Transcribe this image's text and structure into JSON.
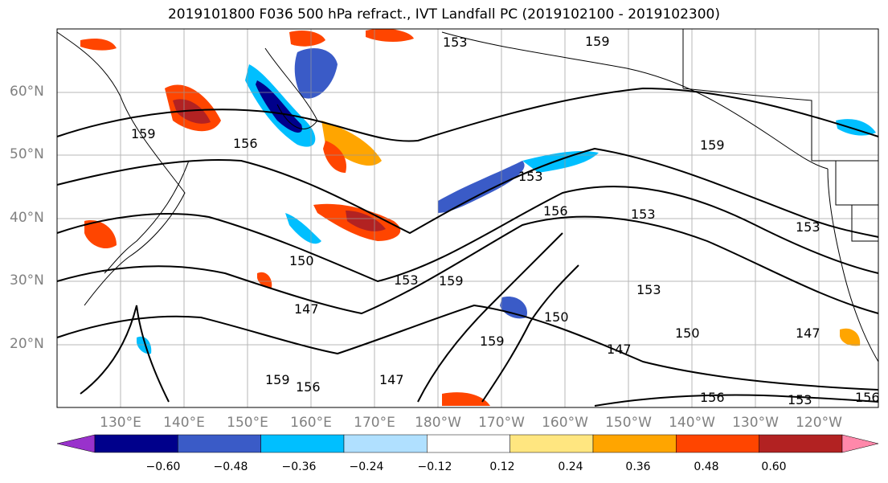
{
  "title": "2019101800 F036 500 hPa refract., IVT Landfall PC (2019102100 - 2019102300)",
  "lat_labels": [
    "60°N",
    "50°N",
    "40°N",
    "30°N",
    "20°N"
  ],
  "lon_labels": [
    "130°E",
    "140°E",
    "150°E",
    "160°E",
    "170°E",
    "180°W",
    "170°W",
    "160°W",
    "150°W",
    "140°W",
    "130°W",
    "120°W"
  ],
  "contour_labels": [
    "159",
    "153",
    "156",
    "159",
    "150",
    "147",
    "153",
    "159",
    "156",
    "153",
    "159",
    "153",
    "150",
    "147",
    "159",
    "156",
    "147",
    "153",
    "156",
    "153",
    "156",
    "150",
    "147",
    "159",
    "153"
  ],
  "colorbar": {
    "tick_labels": [
      "−0.60",
      "−0.48",
      "−0.36",
      "−0.24",
      "−0.12",
      "0.12",
      "0.24",
      "0.36",
      "0.48",
      "0.60"
    ],
    "colors": [
      "#9932CC",
      "#00008B",
      "#3A5BC7",
      "#00BFFF",
      "#B0E0FF",
      "#FFFFFF",
      "#FFE680",
      "#FFA500",
      "#FF4500",
      "#B22222",
      "#FF88AA"
    ]
  },
  "colors": {
    "coast": "#000000",
    "grid": "#999999",
    "contour": "#000000",
    "axis_label": "#808080"
  }
}
